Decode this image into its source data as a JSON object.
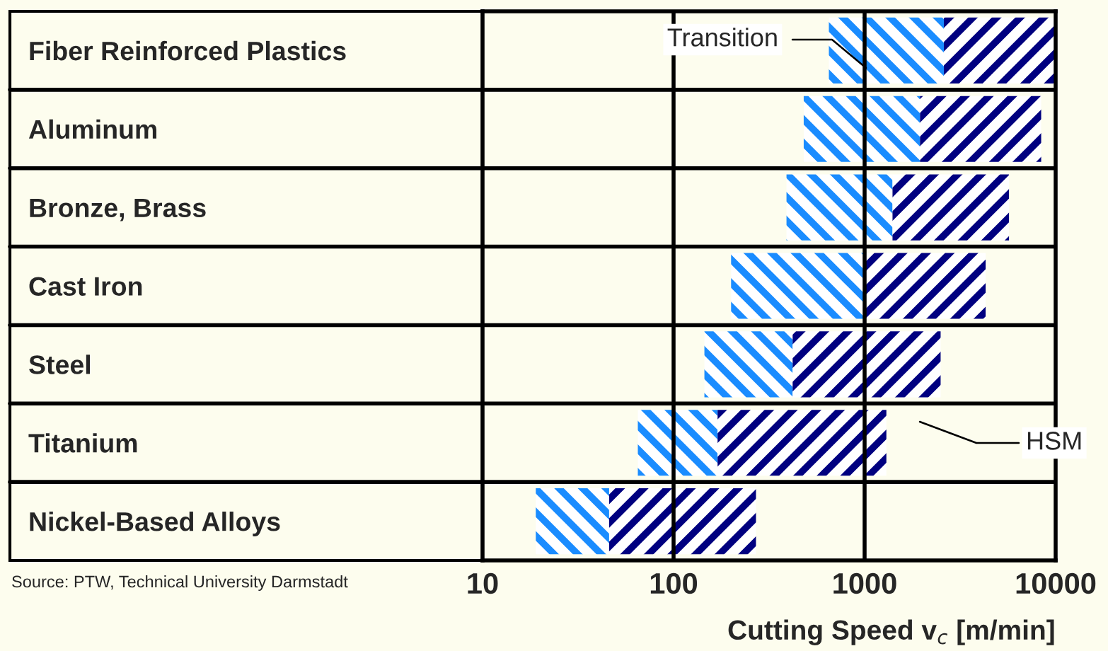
{
  "chart_data": {
    "type": "bar",
    "orientation": "horizontal",
    "log": "x",
    "categories": [
      "Fiber Reinforced Plastics",
      "Aluminum",
      "Bronze, Brass",
      "Cast Iron",
      "Steel",
      "Titanium",
      "Nickel-Based Alloys"
    ],
    "series": [
      {
        "color": "#1a8cff",
        "base": [
          650,
          480,
          390,
          200,
          145,
          65,
          19
        ],
        "values": [
          1950,
          1470,
          1010,
          800,
          275,
          105,
          27
        ]
      },
      {
        "color": "#000080",
        "base": [
          2600,
          1950,
          1400,
          1000,
          420,
          170,
          46
        ],
        "values": [
          7300,
          6450,
          4300,
          3300,
          2080,
          1130,
          224
        ]
      }
    ],
    "xlim": [
      10,
      10000
    ],
    "xticks": [
      10,
      100,
      1000,
      10000
    ],
    "grid": true,
    "xlabel": "Cutting Speed v$_{c}$ [m/min]",
    "annotations": [
      "Transition",
      "HSM",
      "Source: PTW, Technical University Darmstadt"
    ]
  }
}
